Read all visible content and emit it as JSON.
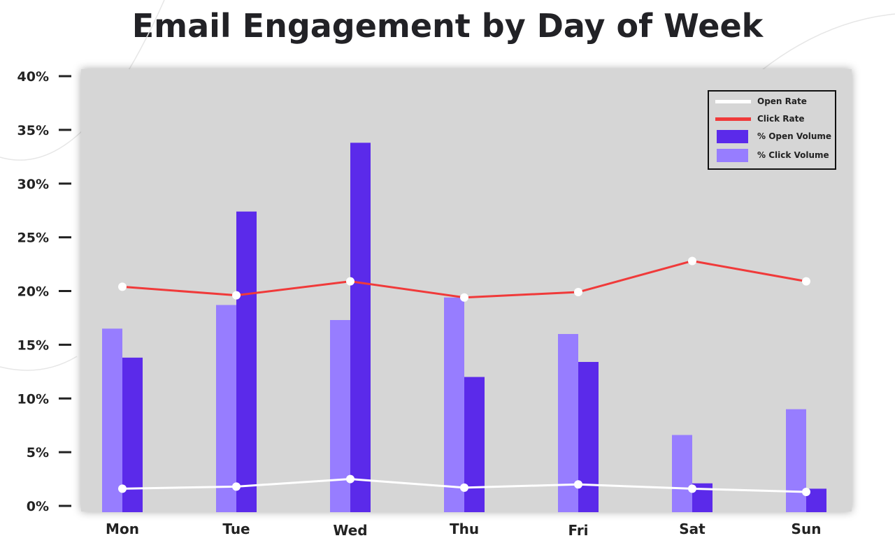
{
  "chart_data": {
    "type": "bar",
    "title": "Email Engagement by Day of Week",
    "xlabel": "",
    "ylabel": "",
    "ylim": [
      0,
      40
    ],
    "yticks": [
      "0%",
      "5%",
      "10%",
      "15%",
      "20%",
      "25%",
      "30%",
      "35%",
      "40%"
    ],
    "categories": [
      "Mon",
      "Tue",
      "Wed",
      "Thu",
      "Fri",
      "Sat",
      "Sun"
    ],
    "legend_position": "top-right",
    "grid": false,
    "series": [
      {
        "name": "% Click Volume",
        "kind": "bar",
        "color": "#977dff",
        "values": [
          16.5,
          18.7,
          17.3,
          19.4,
          16.0,
          6.6,
          9.0
        ]
      },
      {
        "name": "% Open Volume",
        "kind": "bar",
        "color": "#5b2aea",
        "values": [
          13.8,
          27.4,
          33.8,
          12.0,
          13.4,
          2.1,
          1.6
        ]
      },
      {
        "name": "Click Rate",
        "kind": "line",
        "color": "#f03a3a",
        "values": [
          20.4,
          19.6,
          20.9,
          19.4,
          19.9,
          22.8,
          20.9
        ]
      },
      {
        "name": "Open Rate",
        "kind": "line",
        "color": "#ffffff",
        "values": [
          1.6,
          1.8,
          2.5,
          1.7,
          2.0,
          1.6,
          1.3
        ]
      }
    ],
    "legend_order": [
      "Open Rate",
      "Click Rate",
      "% Open Volume",
      "% Click Volume"
    ]
  }
}
